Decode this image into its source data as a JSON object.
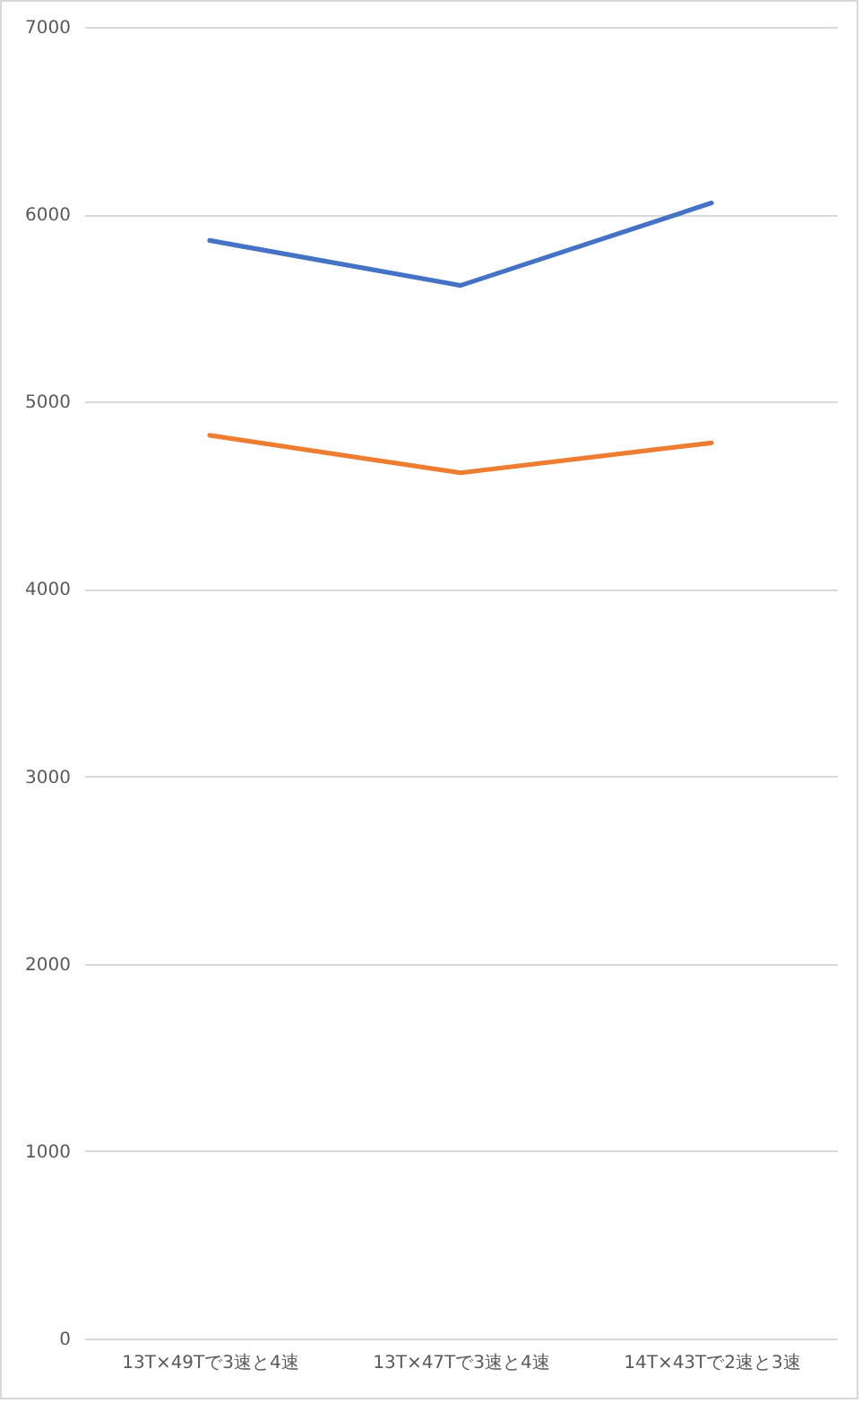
{
  "chart_data": {
    "type": "line",
    "categories": [
      "13T×49Tで3速と4速",
      "13T×47Tで3速と4速",
      "14T×43Tで2速と3速"
    ],
    "series": [
      {
        "color": "#4472c4",
        "values": [
          5860,
          5620,
          6060
        ]
      },
      {
        "color": "#ed7d31",
        "values": [
          4820,
          4620,
          4780
        ]
      }
    ],
    "ylim": [
      0,
      7000
    ],
    "yticks": [
      0,
      1000,
      2000,
      3000,
      4000,
      5000,
      6000,
      7000
    ],
    "grid": "y"
  }
}
